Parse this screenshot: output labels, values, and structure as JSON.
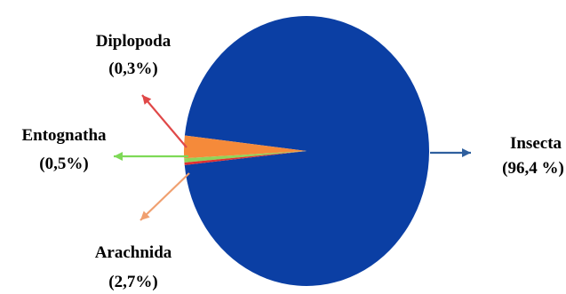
{
  "chart_data": {
    "type": "pie",
    "title": "",
    "slices": [
      {
        "name": "Insecta",
        "value_label": "(96,4 %)",
        "value": 96.4,
        "color": "#0b3fa4",
        "arrow_color": "#2f5f9e"
      },
      {
        "name": "Arachnida",
        "value_label": "(2,7%)",
        "value": 2.7,
        "color": "#f58a3a",
        "arrow_color": "#f0a070"
      },
      {
        "name": "Entognatha",
        "value_label": "(0,5%)",
        "value": 0.5,
        "color": "#8fd45a",
        "arrow_color": "#7ed957"
      },
      {
        "name": "Diplopoda",
        "value_label": "(0,3%)",
        "value": 0.3,
        "color": "#e03030",
        "arrow_color": "#e04848"
      }
    ]
  }
}
